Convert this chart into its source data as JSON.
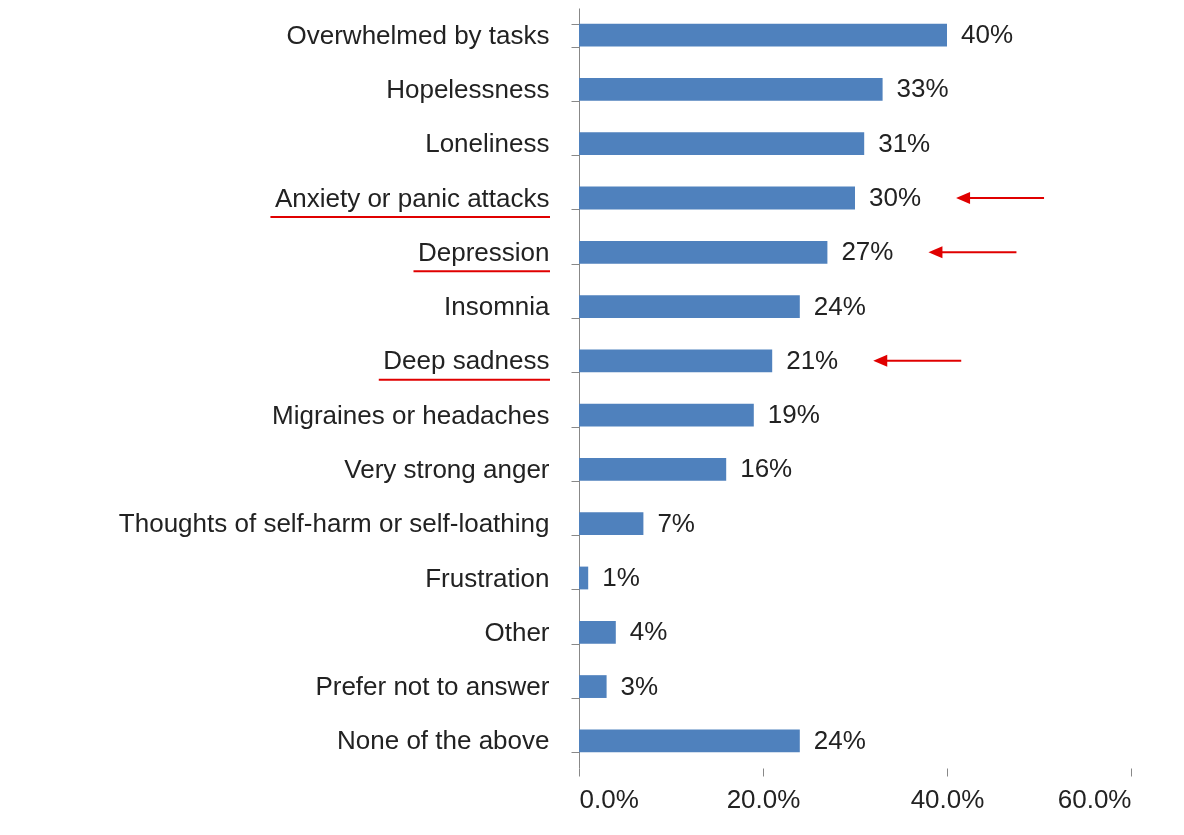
{
  "chart_data": {
    "type": "bar",
    "orientation": "horizontal",
    "categories": [
      "Overwhelmed by tasks",
      "Hopelessness",
      "Loneliness",
      "Anxiety or panic attacks",
      "Depression",
      "Insomnia",
      "Deep sadness",
      "Migraines or headaches",
      "Very strong anger",
      "Thoughts of self-harm or self-loathing",
      "Frustration",
      "Other",
      "Prefer not to answer",
      "None of the above"
    ],
    "values": [
      40,
      33,
      31,
      30,
      27,
      24,
      21,
      19,
      16,
      7,
      1,
      4,
      3,
      24
    ],
    "value_labels": [
      "40%",
      "33%",
      "31%",
      "30%",
      "27%",
      "24%",
      "21%",
      "19%",
      "16%",
      "7%",
      "1%",
      "4%",
      "3%",
      "24%"
    ],
    "color": "#4f81bd",
    "xlim": [
      0,
      60
    ],
    "xticks": [
      {
        "value": 0,
        "label": "0.0%"
      },
      {
        "value": 20,
        "label": "20.0%"
      },
      {
        "value": 40,
        "label": "40.0%"
      },
      {
        "value": 60,
        "label": "60.0%"
      }
    ],
    "grid": false
  }
}
